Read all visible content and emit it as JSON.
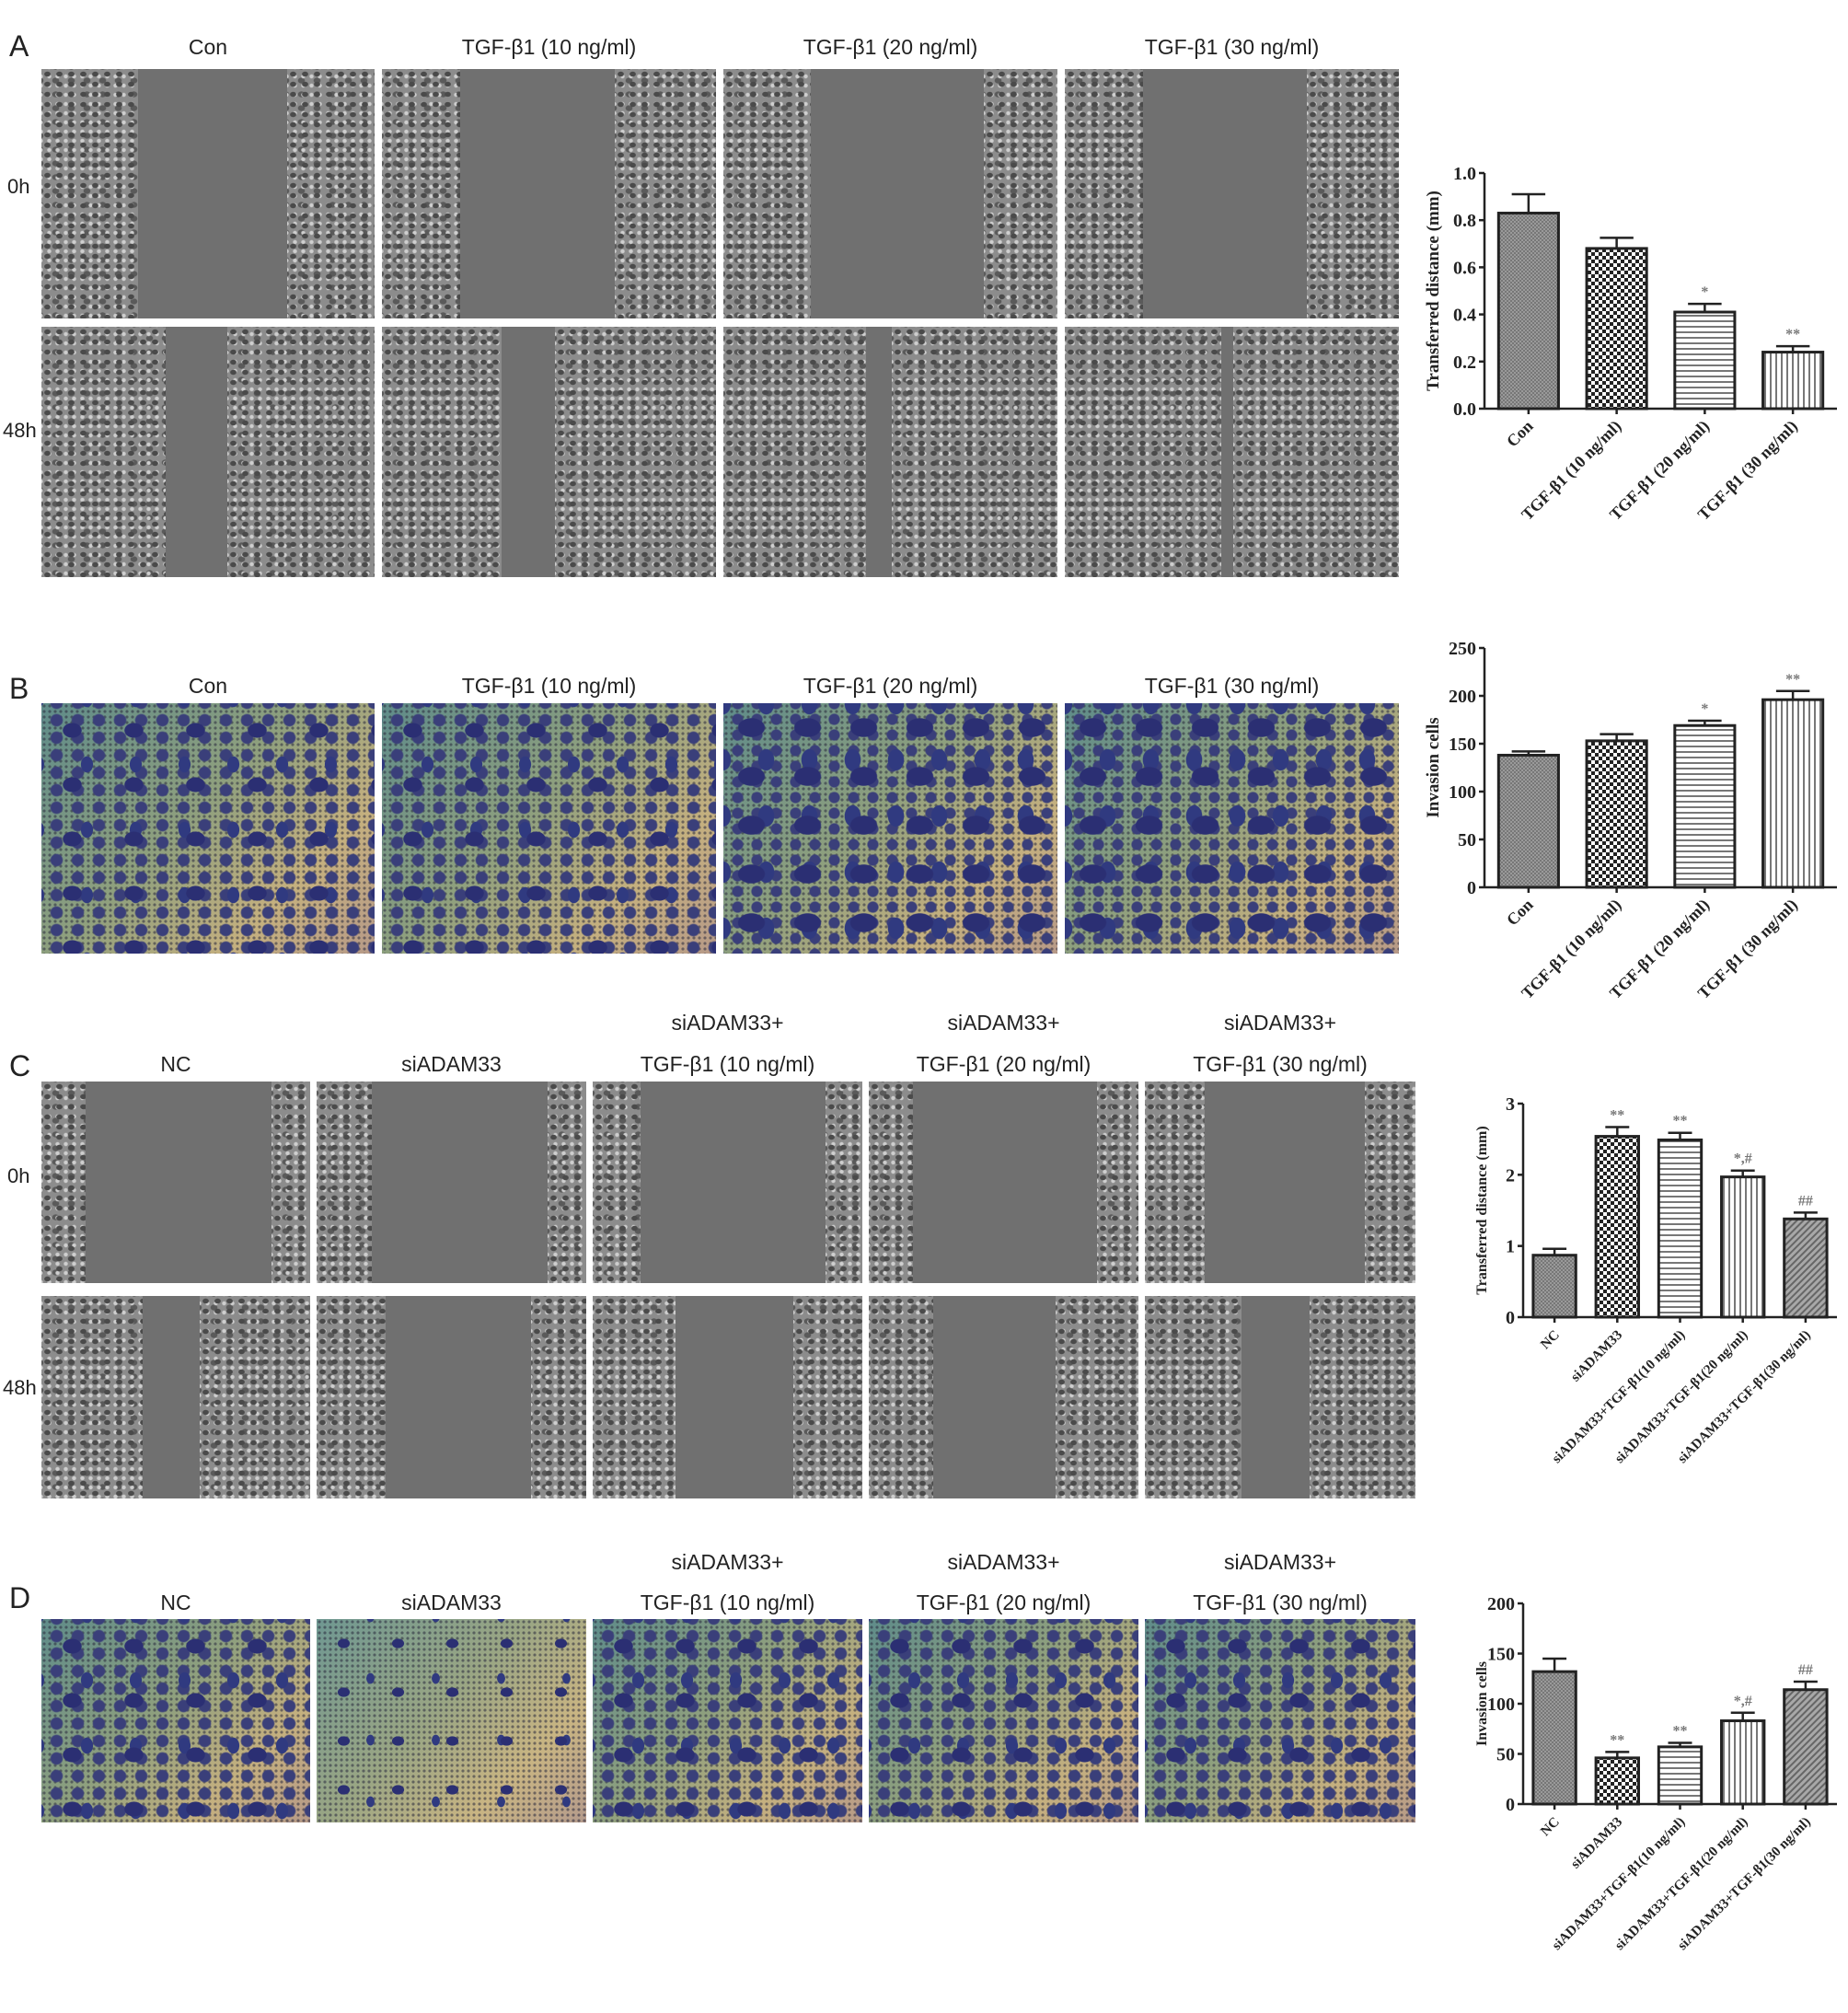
{
  "panels": {
    "A": {
      "label": "A",
      "columns": [
        "Con",
        "TGF-β1 (10 ng/ml)",
        "TGF-β1 (20 ng/ml)",
        "TGF-β1 (30 ng/ml)"
      ],
      "rows": [
        "0h",
        "48h"
      ]
    },
    "B": {
      "label": "B",
      "columns": [
        "Con",
        "TGF-β1 (10 ng/ml)",
        "TGF-β1 (20 ng/ml)",
        "TGF-β1 (30 ng/ml)"
      ]
    },
    "C": {
      "label": "C",
      "columns": [
        {
          "line1": "",
          "line2": "NC"
        },
        {
          "line1": "",
          "line2": "siADAM33"
        },
        {
          "line1": "siADAM33+",
          "line2": "TGF-β1 (10 ng/ml)"
        },
        {
          "line1": "siADAM33+",
          "line2": "TGF-β1 (20 ng/ml)"
        },
        {
          "line1": "siADAM33+",
          "line2": "TGF-β1 (30 ng/ml)"
        }
      ],
      "rows": [
        "0h",
        "48h"
      ]
    },
    "D": {
      "label": "D",
      "columns": [
        {
          "line1": "",
          "line2": "NC"
        },
        {
          "line1": "",
          "line2": "siADAM33"
        },
        {
          "line1": "siADAM33+",
          "line2": "TGF-β1 (10 ng/ml)"
        },
        {
          "line1": "siADAM33+",
          "line2": "TGF-β1 (20 ng/ml)"
        },
        {
          "line1": "siADAM33+",
          "line2": "TGF-β1 (30 ng/ml)"
        }
      ]
    }
  },
  "chart_data": [
    {
      "panel": "A",
      "type": "bar",
      "ylabel": "Transferred distance (mm)",
      "ylim": [
        0,
        1.0
      ],
      "yticks": [
        "0.0",
        "0.2",
        "0.4",
        "0.6",
        "0.8",
        "1.0"
      ],
      "categories": [
        "Con",
        "TGF-β1 (10 ng/ml)",
        "TGF-β1 (20 ng/ml)",
        "TGF-β1 (30 ng/ml)"
      ],
      "values": [
        0.83,
        0.68,
        0.41,
        0.24
      ],
      "errors": [
        0.08,
        0.045,
        0.035,
        0.025
      ],
      "significance": [
        "",
        "",
        "*",
        "**"
      ],
      "patterns": [
        "crosshatch",
        "dots",
        "horizontal",
        "vertical"
      ],
      "grid": false
    },
    {
      "panel": "B",
      "type": "bar",
      "ylabel": "Invasion cells",
      "ylim": [
        0,
        250
      ],
      "yticks": [
        "0",
        "50",
        "100",
        "150",
        "200",
        "250"
      ],
      "categories": [
        "Con",
        "TGF-β1 (10 ng/ml)",
        "TGF-β1 (20 ng/ml)",
        "TGF-β1 (30 ng/ml)"
      ],
      "values": [
        138,
        153,
        169,
        196
      ],
      "errors": [
        4,
        7,
        5,
        9
      ],
      "significance": [
        "",
        "",
        "*",
        "**"
      ],
      "patterns": [
        "crosshatch",
        "dots",
        "horizontal",
        "vertical"
      ],
      "grid": false
    },
    {
      "panel": "C",
      "type": "bar",
      "ylabel": "Transferred distance (mm)",
      "ylim": [
        0,
        3
      ],
      "yticks": [
        "0",
        "1",
        "2",
        "3"
      ],
      "categories": [
        "NC",
        "siADAM33",
        "siADAM33+TGF-β1(10 ng/ml)",
        "siADAM33+TGF-β1(20 ng/ml)",
        "siADAM33+TGF-β1(30 ng/ml)"
      ],
      "values": [
        0.87,
        2.54,
        2.49,
        1.97,
        1.38
      ],
      "errors": [
        0.09,
        0.13,
        0.1,
        0.09,
        0.09
      ],
      "significance": [
        "",
        "**",
        "**",
        "*,#",
        "##"
      ],
      "patterns": [
        "crosshatch",
        "dots",
        "horizontal",
        "vertical",
        "diagonal"
      ],
      "grid": false
    },
    {
      "panel": "D",
      "type": "bar",
      "ylabel": "Invasion cells",
      "ylim": [
        0,
        200
      ],
      "yticks": [
        "0",
        "50",
        "100",
        "150",
        "200"
      ],
      "categories": [
        "NC",
        "siADAM33",
        "siADAM33+TGF-β1(10 ng/ml)",
        "siADAM33+TGF-β1(20 ng/ml)",
        "siADAM33+TGF-β1(30 ng/ml)"
      ],
      "values": [
        132,
        46,
        57,
        83,
        114
      ],
      "errors": [
        13,
        6,
        4,
        8,
        8
      ],
      "significance": [
        "",
        "**",
        "**",
        "*,#",
        "##"
      ],
      "patterns": [
        "crosshatch",
        "dots",
        "horizontal",
        "vertical",
        "diagonal"
      ],
      "grid": false
    }
  ]
}
